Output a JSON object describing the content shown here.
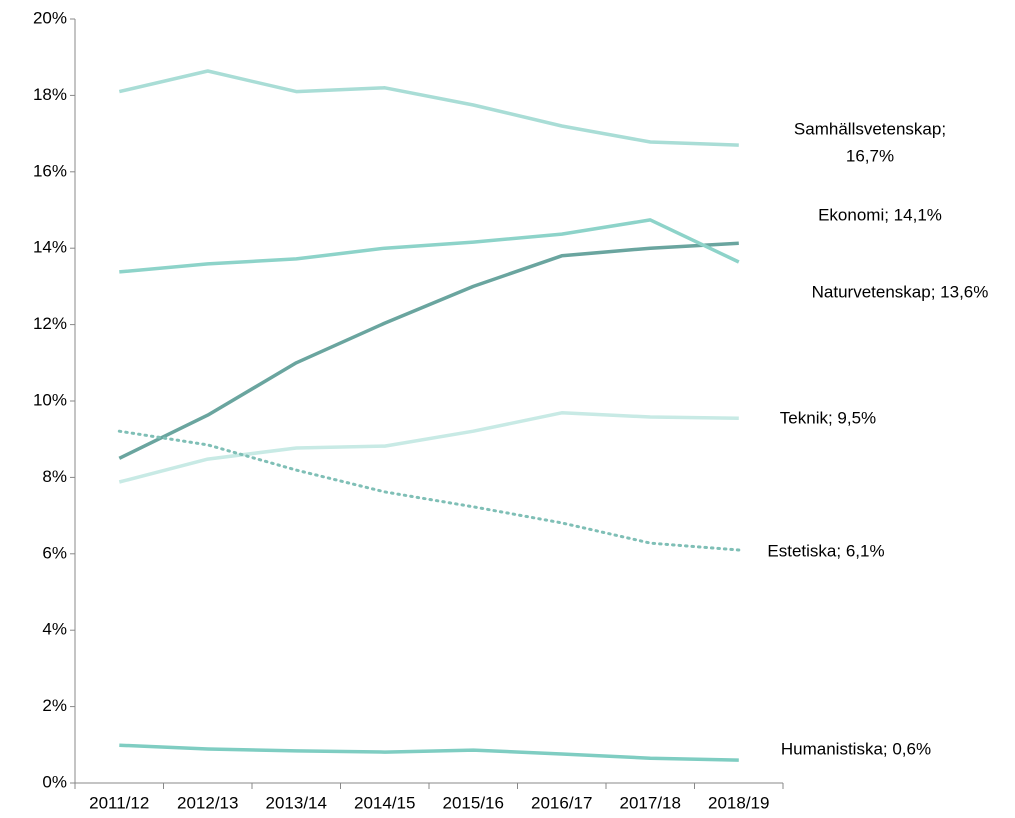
{
  "chart_data": {
    "type": "line",
    "categories": [
      "2011/12",
      "2012/13",
      "2013/14",
      "2014/15",
      "2015/16",
      "2016/17",
      "2017/18",
      "2018/19"
    ],
    "series": [
      {
        "name": "Samhällsvetenskap",
        "color": "#a9ddd6",
        "style": "solid",
        "values": [
          18.1,
          18.64,
          18.1,
          18.2,
          17.75,
          17.2,
          16.78,
          16.7
        ],
        "label": [
          "Samhällsvetenskap;",
          "16,7%"
        ]
      },
      {
        "name": "Ekonomi",
        "color": "#6aa59f",
        "style": "solid",
        "values": [
          8.5,
          9.63,
          11.0,
          12.04,
          13.0,
          13.8,
          14.0,
          14.13
        ],
        "label": [
          "Ekonomi; 14,1%"
        ]
      },
      {
        "name": "Naturvetenskap",
        "color": "#8dd3c9",
        "style": "solid",
        "values": [
          13.38,
          13.59,
          13.72,
          14.0,
          14.16,
          14.37,
          14.74,
          13.64
        ],
        "label": [
          "Naturvetenskap; 13,6%"
        ]
      },
      {
        "name": "Teknik",
        "color": "#c8eae5",
        "style": "solid",
        "values": [
          7.88,
          8.48,
          8.77,
          8.82,
          9.21,
          9.69,
          9.58,
          9.55
        ],
        "label": [
          "Teknik; 9,5%"
        ]
      },
      {
        "name": "Estetiska",
        "color": "#7fbfb6",
        "style": "dotted",
        "values": [
          9.21,
          8.85,
          8.19,
          7.62,
          7.23,
          6.81,
          6.28,
          6.1
        ],
        "label": [
          "Estetiska; 6,1%"
        ]
      },
      {
        "name": "Humanistiska",
        "color": "#7fcdc2",
        "style": "solid",
        "values": [
          0.99,
          0.89,
          0.84,
          0.81,
          0.86,
          0.76,
          0.65,
          0.6
        ],
        "label": [
          "Humanistiska; 0,6%"
        ]
      }
    ],
    "ylim": [
      0,
      20
    ],
    "yticks": [
      {
        "value": 0,
        "label": "0%"
      },
      {
        "value": 2,
        "label": "2%"
      },
      {
        "value": 4,
        "label": "4%"
      },
      {
        "value": 6,
        "label": "6%"
      },
      {
        "value": 8,
        "label": "8%"
      },
      {
        "value": 10,
        "label": "10%"
      },
      {
        "value": 12,
        "label": "12%"
      },
      {
        "value": 14,
        "label": "14%"
      },
      {
        "value": 16,
        "label": "16%"
      },
      {
        "value": 18,
        "label": "18%"
      },
      {
        "value": 20,
        "label": "20%"
      }
    ],
    "grid": false
  }
}
